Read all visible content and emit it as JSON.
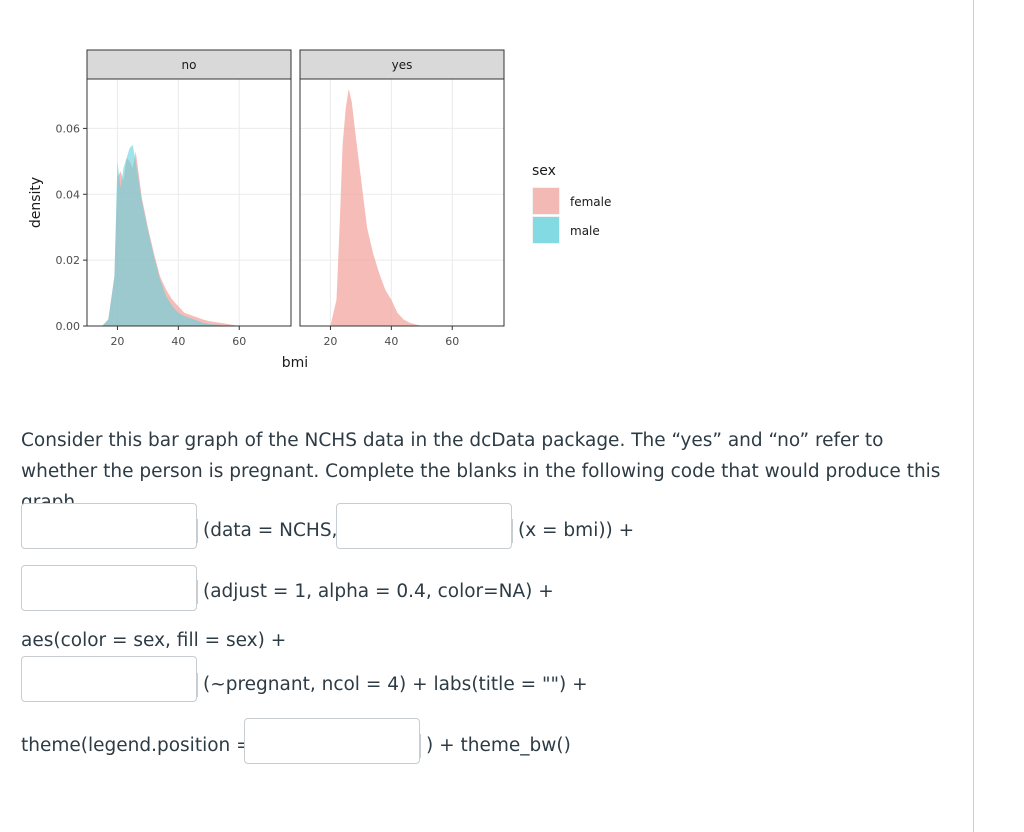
{
  "chart_data": {
    "type": "area",
    "xlabel": "bmi",
    "ylabel": "density",
    "ylim": [
      0,
      0.075
    ],
    "xlim": [
      10,
      77
    ],
    "x_ticks": [
      20,
      40,
      60
    ],
    "y_ticks": [
      0.0,
      0.02,
      0.04,
      0.06
    ],
    "y_tick_labels": [
      "0.00",
      "0.02",
      "0.04",
      "0.06"
    ],
    "legend": {
      "title": "sex",
      "position": "right",
      "entries": [
        "female",
        "male"
      ]
    },
    "colors": {
      "female": "#f2a5a0",
      "male": "#5fd2dc",
      "strip": "#d9d9d9",
      "grid": "#ebebeb"
    },
    "panels": [
      {
        "label": "no",
        "series": [
          {
            "name": "female",
            "x": [
              15,
              17,
              19,
              20,
              21,
              22,
              23,
              24,
              25,
              26,
              27,
              28,
              30,
              32,
              34,
              36,
              38,
              40,
              42,
              45,
              48,
              50,
              55,
              60
            ],
            "values": [
              0,
              0.002,
              0.015,
              0.045,
              0.047,
              0.044,
              0.051,
              0.05,
              0.048,
              0.053,
              0.046,
              0.039,
              0.03,
              0.022,
              0.015,
              0.011,
              0.008,
              0.006,
              0.004,
              0.003,
              0.002,
              0.0015,
              0.0008,
              0
            ]
          },
          {
            "name": "male",
            "x": [
              15,
              17,
              19,
              20,
              21,
              22,
              23,
              24,
              25,
              26,
              27,
              28,
              30,
              32,
              34,
              36,
              38,
              40,
              42,
              45,
              48,
              50,
              55,
              60
            ],
            "values": [
              0,
              0.002,
              0.015,
              0.05,
              0.042,
              0.048,
              0.051,
              0.054,
              0.055,
              0.05,
              0.044,
              0.038,
              0.029,
              0.021,
              0.014,
              0.009,
              0.006,
              0.004,
              0.003,
              0.002,
              0.001,
              0.0006,
              0.0002,
              0
            ]
          }
        ]
      },
      {
        "label": "yes",
        "series": [
          {
            "name": "female",
            "x": [
              20,
              22,
              23,
              24,
              25,
              26,
              27,
              28,
              30,
              32,
              34,
              36,
              38,
              40,
              42,
              44,
              46,
              48,
              50
            ],
            "values": [
              0,
              0.008,
              0.03,
              0.055,
              0.066,
              0.072,
              0.068,
              0.06,
              0.045,
              0.03,
              0.022,
              0.016,
              0.011,
              0.008,
              0.004,
              0.002,
              0.001,
              0.0005,
              0
            ]
          }
        ]
      }
    ]
  },
  "question": {
    "text": "Consider this bar graph of the NCHS data in the dcData package.  The “yes” and “no” refer to whether the person is pregnant. Complete the blanks in the following code that would produce this graph.",
    "line1_after_blank1": "(data = NCHS,",
    "line1_after_blank2": "(x = bmi)) +",
    "line2_after_blank": "(adjust = 1, alpha = 0.4, color=NA) +",
    "line3": "aes(color = sex, fill = sex) +",
    "line4_after_blank": "(~pregnant, ncol = 4) + labs(title = \"\") +",
    "line5_before_blank": "theme(legend.position =",
    "line5_after_blank": ") + theme_bw()"
  }
}
